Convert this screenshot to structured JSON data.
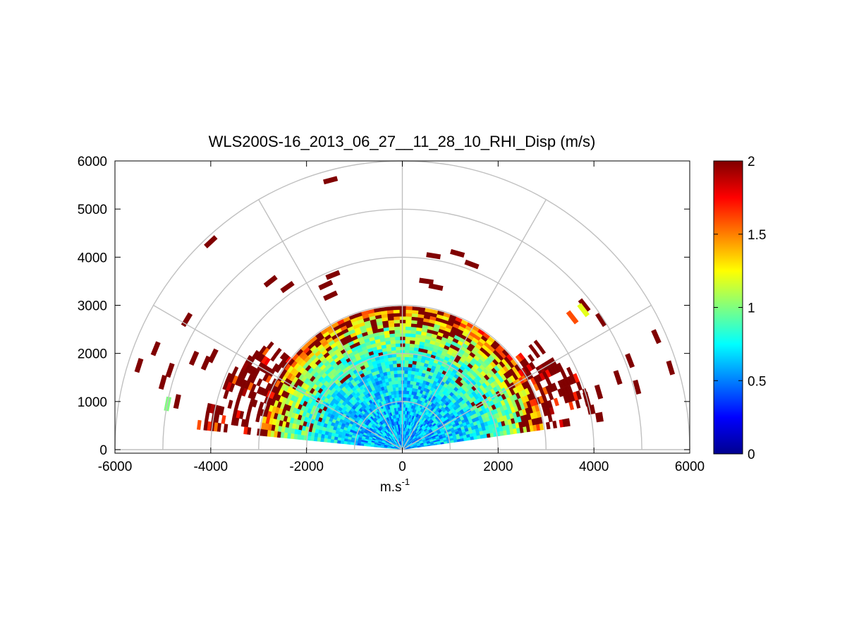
{
  "chart_data": {
    "type": "heatmap",
    "subtype": "polar-rhi-sector",
    "title": "WLS200S-16_2013_06_27__11_28_10_RHI_Disp (m/s)",
    "xlabel": "m.s",
    "xlabel_superscript": "-1",
    "ylabel": "",
    "xlim": [
      -6000,
      6000
    ],
    "ylim": [
      0,
      6000
    ],
    "xticks": [
      -6000,
      -4000,
      -2000,
      0,
      2000,
      4000,
      6000
    ],
    "xtick_labels": [
      "-6000",
      "-4000",
      "-2000",
      "0",
      "2000",
      "4000",
      "6000"
    ],
    "yticks": [
      0,
      1000,
      2000,
      3000,
      4000,
      5000,
      6000
    ],
    "ytick_labels": [
      "0",
      "1000",
      "2000",
      "3000",
      "4000",
      "5000",
      "6000"
    ],
    "polar_grid": {
      "ranges_m": [
        1000,
        2000,
        3000,
        4000,
        5000,
        6000
      ],
      "spokes_deg": [
        0,
        30,
        60,
        90,
        120,
        150,
        180
      ]
    },
    "colorbar": {
      "colormap": "jet",
      "clim": [
        0,
        2
      ],
      "ticks": [
        0,
        0.5,
        1,
        1.5,
        2
      ],
      "tick_labels": [
        "0",
        "0.5",
        "1",
        "1.5",
        "2"
      ]
    },
    "scan": {
      "elevation_deg": [
        8,
        172
      ],
      "range_m": [
        0,
        3000
      ],
      "description": "Velocity dispersion (m/s) per range gate; low values (~0.5) near radar, rising toward saturation (2) at far ranges, with isolated saturated gates beyond 3000 m"
    },
    "regions": [
      {
        "label": "near-field",
        "range_m": [
          0,
          1500
        ],
        "typical_value": 0.6
      },
      {
        "label": "mid-field",
        "range_m": [
          1500,
          2500
        ],
        "typical_value": 0.9
      },
      {
        "label": "far-field",
        "range_m": [
          2500,
          3000
        ],
        "typical_value": 1.4
      },
      {
        "label": "low-elevation right lobe",
        "range_m": [
          2500,
          4200
        ],
        "elevation_deg": [
          8,
          40
        ],
        "typical_value": 1.9
      },
      {
        "label": "low-elevation left lobe",
        "range_m": [
          2500,
          4300
        ],
        "elevation_deg": [
          140,
          172
        ],
        "typical_value": 1.9
      }
    ],
    "isolated_gates": [
      {
        "x": -1500,
        "y": 5600,
        "value": 2
      },
      {
        "x": -4000,
        "y": 4320,
        "value": 2
      },
      {
        "x": -2750,
        "y": 3500,
        "value": 2
      },
      {
        "x": -2400,
        "y": 3380,
        "value": 2
      },
      {
        "x": -1450,
        "y": 3630,
        "value": 2
      },
      {
        "x": -1600,
        "y": 3420,
        "value": 2
      },
      {
        "x": -1500,
        "y": 3200,
        "value": 2
      },
      {
        "x": 650,
        "y": 4030,
        "value": 2
      },
      {
        "x": 1150,
        "y": 4080,
        "value": 2
      },
      {
        "x": 1450,
        "y": 3850,
        "value": 2
      },
      {
        "x": 500,
        "y": 3500,
        "value": 2
      },
      {
        "x": 700,
        "y": 3380,
        "value": 2
      },
      {
        "x": -4500,
        "y": 2700,
        "value": 2
      },
      {
        "x": -5150,
        "y": 2100,
        "value": 2
      },
      {
        "x": -5500,
        "y": 1750,
        "value": 2
      },
      {
        "x": -4850,
        "y": 1650,
        "value": 2
      },
      {
        "x": -5000,
        "y": 1400,
        "value": 2
      },
      {
        "x": -4700,
        "y": 1000,
        "value": 2
      },
      {
        "x": -4900,
        "y": 950,
        "value": 1.0
      },
      {
        "x": -4350,
        "y": 1900,
        "value": 2
      },
      {
        "x": -3950,
        "y": 1950,
        "value": 2
      },
      {
        "x": -4100,
        "y": 1800,
        "value": 2
      },
      {
        "x": 4150,
        "y": 2700,
        "value": 2
      },
      {
        "x": 5300,
        "y": 2350,
        "value": 2
      },
      {
        "x": 5600,
        "y": 1700,
        "value": 2
      },
      {
        "x": 4500,
        "y": 1500,
        "value": 2
      },
      {
        "x": 4750,
        "y": 1850,
        "value": 2
      },
      {
        "x": 4900,
        "y": 1300,
        "value": 2
      },
      {
        "x": 3800,
        "y": 3000,
        "value": 2
      },
      {
        "x": 3550,
        "y": 2750,
        "value": 1.6
      },
      {
        "x": 3780,
        "y": 2900,
        "value": 1.2
      },
      {
        "x": 4100,
        "y": 1200,
        "value": 2
      },
      {
        "x": 3850,
        "y": 1050,
        "value": 2
      }
    ]
  }
}
